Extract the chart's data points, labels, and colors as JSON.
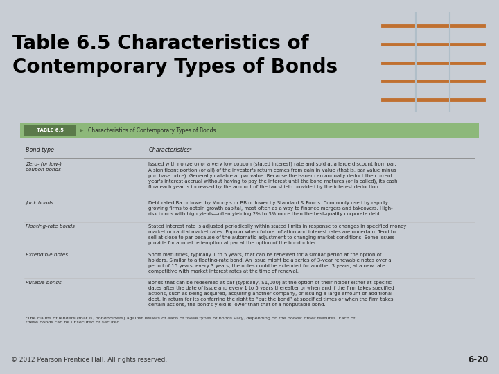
{
  "title": "Table 6.5 Characteristics of\nContemporary Types of Bonds",
  "title_bg_color": "#FFFFFF",
  "title_top_border_color": "#E8922A",
  "title_text_color": "#000000",
  "title_fontsize": 20,
  "table_header_bg": "#8DB87A",
  "table_label_bg": "#5A7A4A",
  "table_label_text": "TABLE 6.5",
  "table_subtitle": "Characteristics of Contemporary Types of Bonds",
  "table_body_bg": "#E8EFE0",
  "slide_bg": "#C8CDD4",
  "footer_text": "© 2012 Pearson Prentice Hall. All rights reserved.",
  "footer_right": "6-20",
  "columns": [
    "Bond type",
    "Characteristicsᵃ"
  ],
  "rows": [
    {
      "type": "Zero- (or low-)\ncoupon bonds",
      "desc": "Issued with no (zero) or a very low coupon (stated interest) rate and sold at a large discount from par.\nA significant portion (or all) of the investor's return comes from gain in value (that is, par value minus\npurchase price). Generally callable at par value. Because the issuer can annually deduct the current\nyear's interest accrual without having to pay the interest until the bond matures (or is called), its cash\nflow each year is increased by the amount of the tax shield provided by the interest deduction."
    },
    {
      "type": "Junk bonds",
      "desc": "Debt rated Ba or lower by Moody's or BB or lower by Standard & Poor's. Commonly used by rapidly\ngrowing firms to obtain growth capital, most often as a way to finance mergers and takeovers. High-\nrisk bonds with high yields—often yielding 2% to 3% more than the best-quality corporate debt."
    },
    {
      "type": "Floating-rate bonds",
      "desc": "Stated interest rate is adjusted periodically within stated limits in response to changes in specified money\nmarket or capital market rates. Popular when future inflation and interest rates are uncertain. Tend to\nsell at close to par because of the automatic adjustment to changing market conditions. Some issues\nprovide for annual redemption at par at the option of the bondholder."
    },
    {
      "type": "Extendible notes",
      "desc": "Short maturities, typically 1 to 5 years, that can be renewed for a similar period at the option of\nholders. Similar to a floating-rate bond. An issue might be a series of 3-year renewable notes over a\nperiod of 15 years; every 3 years, the notes could be extended for another 3 years, at a new rate\ncompetitive with market interest rates at the time of renewal."
    },
    {
      "type": "Putable bonds",
      "desc": "Bonds that can be redeemed at par (typically, $1,000) at the option of their holder either at specific\ndates after the date of issue and every 1 to 5 years thereafter or when and if the firm takes specified\nactions, such as being acquired, acquiring another company, or issuing a large amount of additional\ndebt. In return for its conferring the right to “put the bond” at specified times or when the firm takes\ncertain actions, the bond's yield is lower than that of a nonputable bond."
    }
  ],
  "footnote": "ᵃThe claims of lenders (that is, bondholders) against issuers of each of these types of bonds vary, depending on the bonds' other features. Each of\nthese bonds can be unsecured or secured."
}
